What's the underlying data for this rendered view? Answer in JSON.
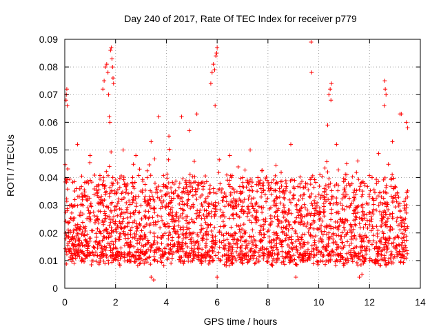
{
  "chart_data": {
    "type": "scatter",
    "title": "Day 240 of 2017, Rate Of TEC Index for receiver p779",
    "xlabel": "GPS time / hours",
    "ylabel": "ROTI / TECUs",
    "xlim": [
      0,
      14
    ],
    "ylim": [
      0,
      0.09
    ],
    "x_ticks": [
      0,
      2,
      4,
      6,
      8,
      10,
      12,
      14
    ],
    "x_tick_labels": [
      "0",
      "2",
      "4",
      "6",
      "8",
      "10",
      "12",
      "14"
    ],
    "y_ticks": [
      0,
      0.01,
      0.02,
      0.03,
      0.04,
      0.05,
      0.06,
      0.07,
      0.08,
      0.09
    ],
    "y_tick_labels": [
      "0",
      "0.01",
      "0.02",
      "0.03",
      "0.04",
      "0.05",
      "0.06",
      "0.07",
      "0.08",
      "0.09"
    ],
    "grid": true,
    "marker": "+",
    "series": [
      {
        "name": "ROTI",
        "color": "#ff0000",
        "x_range": [
          0.0,
          13.5
        ],
        "typical_range": [
          0.005,
          0.045
        ],
        "points": [
          [
            0.05,
            0.068
          ],
          [
            0.06,
            0.07
          ],
          [
            0.08,
            0.072
          ],
          [
            0.1,
            0.066
          ],
          [
            1.5,
            0.072
          ],
          [
            1.55,
            0.075
          ],
          [
            1.6,
            0.08
          ],
          [
            1.65,
            0.081
          ],
          [
            1.7,
            0.078
          ],
          [
            1.72,
            0.07
          ],
          [
            1.8,
            0.086
          ],
          [
            1.83,
            0.087
          ],
          [
            1.86,
            0.083
          ],
          [
            1.88,
            0.08
          ],
          [
            1.9,
            0.076
          ],
          [
            1.92,
            0.074
          ],
          [
            1.75,
            0.062
          ],
          [
            1.78,
            0.06
          ],
          [
            3.7,
            0.062
          ],
          [
            4.1,
            0.055
          ],
          [
            4.6,
            0.062
          ],
          [
            5.2,
            0.063
          ],
          [
            5.75,
            0.074
          ],
          [
            5.8,
            0.078
          ],
          [
            5.85,
            0.081
          ],
          [
            5.9,
            0.079
          ],
          [
            5.95,
            0.084
          ],
          [
            6.0,
            0.087
          ],
          [
            5.98,
            0.085
          ],
          [
            5.92,
            0.066
          ],
          [
            9.7,
            0.089
          ],
          [
            9.72,
            0.078
          ],
          [
            10.4,
            0.07
          ],
          [
            10.45,
            0.072
          ],
          [
            10.5,
            0.074
          ],
          [
            10.48,
            0.068
          ],
          [
            10.35,
            0.059
          ],
          [
            12.6,
            0.075
          ],
          [
            12.62,
            0.072
          ],
          [
            12.65,
            0.07
          ],
          [
            12.58,
            0.066
          ],
          [
            13.2,
            0.063
          ],
          [
            13.25,
            0.063
          ],
          [
            13.45,
            0.06
          ],
          [
            13.5,
            0.058
          ],
          [
            0.5,
            0.052
          ],
          [
            1.0,
            0.048
          ],
          [
            2.3,
            0.05
          ],
          [
            2.8,
            0.048
          ],
          [
            3.4,
            0.053
          ],
          [
            4.9,
            0.057
          ],
          [
            6.5,
            0.048
          ],
          [
            7.3,
            0.05
          ],
          [
            8.9,
            0.052
          ],
          [
            10.7,
            0.052
          ],
          [
            11.1,
            0.045
          ],
          [
            12.1,
            0.04
          ],
          [
            12.9,
            0.053
          ],
          [
            3.5,
            0.003
          ],
          [
            3.4,
            0.004
          ],
          [
            6.0,
            0.004
          ],
          [
            9.1,
            0.004
          ],
          [
            11.6,
            0.004
          ],
          [
            11.7,
            0.005
          ]
        ]
      }
    ]
  }
}
